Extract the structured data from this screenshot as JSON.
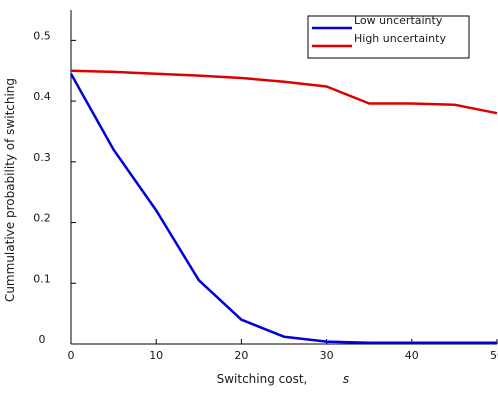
{
  "chart_data": {
    "type": "line",
    "title": "",
    "xlabel": "Switching cost,",
    "xlabel_symbol": "s",
    "ylabel": "Cummulative probability of switching",
    "xlim": [
      0,
      50
    ],
    "ylim": [
      0,
      0.55
    ],
    "x_ticks": [
      0,
      10,
      20,
      30,
      40,
      50
    ],
    "y_ticks": [
      0,
      0.1,
      0.2,
      0.3,
      0.4,
      0.5
    ],
    "x_tick_labels": [
      "0",
      "10",
      "20",
      "30",
      "40",
      "50"
    ],
    "y_tick_labels": [
      "0",
      "0.1",
      "0.2",
      "0.3",
      "0.4",
      "0.5"
    ],
    "grid": false,
    "legend_position": "top-right",
    "series": [
      {
        "name": "Low uncertainty",
        "color": "#0000dd",
        "x": [
          0,
          5,
          10,
          15,
          20,
          25,
          30,
          35,
          40,
          45,
          50
        ],
        "y": [
          0.445,
          0.32,
          0.22,
          0.105,
          0.04,
          0.012,
          0.004,
          0.002,
          0.002,
          0.002,
          0.002
        ]
      },
      {
        "name": "High uncertainty",
        "color": "#dd0000",
        "x": [
          0,
          5,
          10,
          15,
          20,
          25,
          30,
          35,
          40,
          45,
          50
        ],
        "y": [
          0.45,
          0.448,
          0.445,
          0.442,
          0.438,
          0.432,
          0.424,
          0.396,
          0.396,
          0.394,
          0.38
        ]
      }
    ]
  }
}
